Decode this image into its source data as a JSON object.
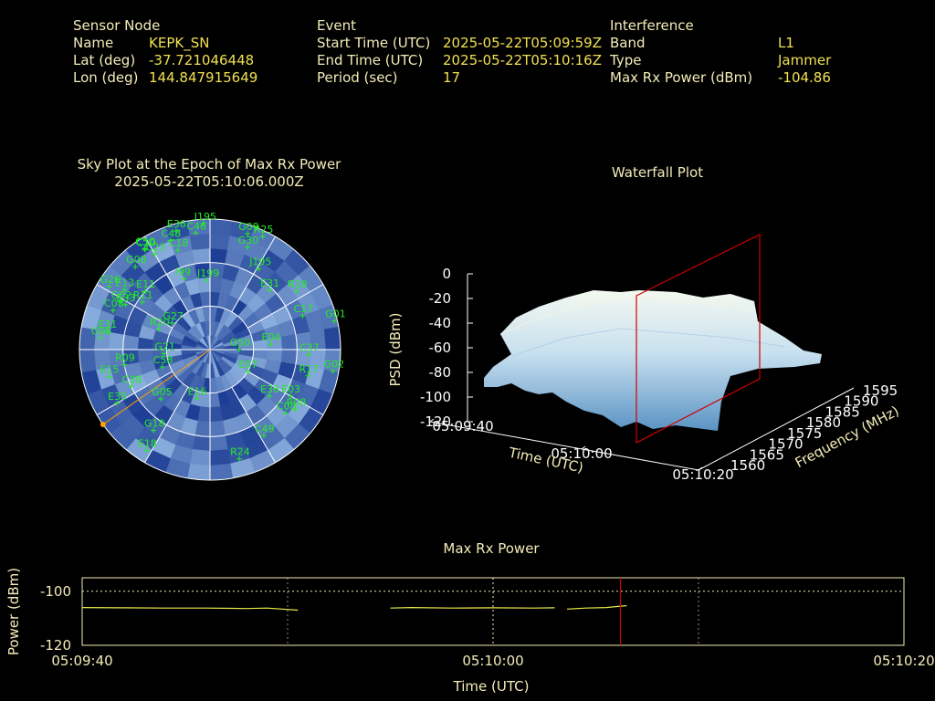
{
  "sensor": {
    "header": "Sensor Node",
    "name_label": "Name",
    "name": "KEPK_SN",
    "lat_label": "Lat (deg)",
    "lat": "-37.721046448",
    "lon_label": "Lon (deg)",
    "lon": "144.847915649"
  },
  "event": {
    "header": "Event",
    "start_label": "Start Time (UTC)",
    "start": "2025-05-22T05:09:59Z",
    "end_label": "End Time (UTC)",
    "end": "2025-05-22T05:10:16Z",
    "period_label": "Period (sec)",
    "period": "17"
  },
  "interference": {
    "header": "Interference",
    "band_label": "Band",
    "band": "L1",
    "type_label": "Type",
    "type": "Jammer",
    "power_label": "Max Rx Power (dBm)",
    "power": "-104.86"
  },
  "skyplot": {
    "title": "Sky Plot at the Epoch of Max Rx Power",
    "subtitle": "2025-05-22T05:10:06.000Z"
  },
  "waterfall": {
    "title": "Waterfall Plot",
    "zlabel": "PSD (dBm)",
    "xlabel": "Time (UTC)",
    "ylabel": "Frequency (MHz)",
    "zticks": [
      "0",
      "-20",
      "-40",
      "-60",
      "-80",
      "-100",
      "-120"
    ],
    "xticks": [
      "05:09:40",
      "05:10:00",
      "05:10:20"
    ],
    "yticks": [
      "1560",
      "1565",
      "1570",
      "1575",
      "1580",
      "1585",
      "1590",
      "1595"
    ]
  },
  "chart_data": [
    {
      "type": "scatter",
      "title": "Sky Plot at the Epoch of Max Rx Power",
      "subtitle": "2025-05-22T05:10:06.000Z",
      "satellites": [
        {
          "id": "E36",
          "az": -16,
          "el": 5
        },
        {
          "id": "I195",
          "az": -3,
          "el": 3
        },
        {
          "id": "G09",
          "az": 18,
          "el": 6
        },
        {
          "id": "R25",
          "az": 25,
          "el": 4
        },
        {
          "id": "C50",
          "az": -33,
          "el": 7
        },
        {
          "id": "C10",
          "az": -33,
          "el": 8
        },
        {
          "id": "C23",
          "az": -30,
          "el": 14
        },
        {
          "id": "C48",
          "az": -20,
          "el": 10
        },
        {
          "id": "C46",
          "az": -7,
          "el": 9
        },
        {
          "id": "G08",
          "az": -42,
          "el": 13
        },
        {
          "id": "C18",
          "az": -18,
          "el": 18
        },
        {
          "id": "G30",
          "az": 20,
          "el": 15
        },
        {
          "id": "G26",
          "az": -58,
          "el": 8
        },
        {
          "id": "E13",
          "az": -55,
          "el": 18
        },
        {
          "id": "I99",
          "az": -20,
          "el": 38
        },
        {
          "id": "J199",
          "az": -3,
          "el": 42
        },
        {
          "id": "J195",
          "az": 31,
          "el": 25
        },
        {
          "id": "E11",
          "az": -48,
          "el": 30
        },
        {
          "id": "R11",
          "az": -55,
          "el": 33
        },
        {
          "id": "E33",
          "az": -62,
          "el": 24
        },
        {
          "id": "G02",
          "az": -62,
          "el": 20
        },
        {
          "id": "C08",
          "az": -68,
          "el": 18
        },
        {
          "id": "E31",
          "az": 45,
          "el": 32
        },
        {
          "id": "R18",
          "az": 56,
          "el": 18
        },
        {
          "id": "G01",
          "az": 77,
          "el": 2
        },
        {
          "id": "E31",
          "az": -80,
          "el": 18
        },
        {
          "id": "G05",
          "az": -84,
          "el": 14
        },
        {
          "id": "G27",
          "az": -55,
          "el": 58
        },
        {
          "id": "R20",
          "az": -68,
          "el": 52
        },
        {
          "id": "C17",
          "az": 70,
          "el": 22
        },
        {
          "id": "G21",
          "az": -95,
          "el": 58
        },
        {
          "id": "G50",
          "az": 90,
          "el": 70
        },
        {
          "id": "E04",
          "az": 85,
          "el": 48
        },
        {
          "id": "C37",
          "az": 93,
          "el": 22
        },
        {
          "id": "G02",
          "az": 100,
          "el": 4
        },
        {
          "id": "R09",
          "az": -100,
          "el": 30
        },
        {
          "id": "C58",
          "az": -110,
          "el": 55
        },
        {
          "id": "E15",
          "az": -105,
          "el": 18
        },
        {
          "id": "C38",
          "az": -115,
          "el": 30
        },
        {
          "id": "R17",
          "az": 105,
          "el": 20
        },
        {
          "id": "E35",
          "az": -120,
          "el": 16
        },
        {
          "id": "E07",
          "az": 120,
          "el": 60
        },
        {
          "id": "E36",
          "az": 128,
          "el": 38
        },
        {
          "id": "E03",
          "az": 120,
          "el": 26
        },
        {
          "id": "R08",
          "az": 125,
          "el": 18
        },
        {
          "id": "C08",
          "az": 130,
          "el": 22
        },
        {
          "id": "G05",
          "az": -135,
          "el": 42
        },
        {
          "id": "G18",
          "az": -145,
          "el": 22
        },
        {
          "id": "E16",
          "az": -165,
          "el": 55
        },
        {
          "id": "E18",
          "az": -148,
          "el": 8
        },
        {
          "id": "R24",
          "az": 165,
          "el": 12
        },
        {
          "id": "C49",
          "az": 148,
          "el": 20
        }
      ],
      "interferer_azimuth_deg": -125,
      "interferer_elevation_deg": 0
    },
    {
      "type": "area",
      "title": "Waterfall Plot",
      "xlabel": "Time (UTC)",
      "ylabel": "Frequency (MHz)",
      "zlabel": "PSD (dBm)",
      "time_range": [
        "05:09:40",
        "05:10:20"
      ],
      "freq_range_mhz": [
        1560,
        1595
      ],
      "zlim": [
        -120,
        0
      ],
      "marker_time": "05:10:06",
      "psd_level_dbm": [
        -80,
        -50,
        -48,
        -45,
        -48,
        -52,
        -70
      ],
      "psd_freq_mhz": [
        1560,
        1565,
        1570,
        1575,
        1580,
        1585,
        1595
      ]
    },
    {
      "type": "line",
      "title": "Max Rx Power",
      "xlabel": "Time (UTC)",
      "ylabel": "Power (dBm)",
      "ylim": [
        -120,
        -95
      ],
      "yticks": [
        "-100",
        "-120"
      ],
      "xticks": [
        "05:09:40",
        "05:10:00",
        "05:10:20"
      ],
      "marker_time": "05:10:06",
      "series": [
        {
          "segments": [
            {
              "x": [
                0,
                2,
                4,
                6,
                8,
                9,
                10.5
              ],
              "y": [
                -106.0,
                -106.1,
                -106.2,
                -106.2,
                -106.4,
                -106.2,
                -107.0
              ]
            },
            {
              "x": [
                15,
                16,
                18,
                20,
                22,
                23
              ],
              "y": [
                -106.2,
                -106.0,
                -106.2,
                -106.1,
                -106.2,
                -106.1
              ]
            },
            {
              "x": [
                23.6,
                24.5,
                25.5,
                26.5
              ],
              "y": [
                -106.6,
                -106.2,
                -106.0,
                -105.3
              ]
            }
          ]
        }
      ]
    }
  ],
  "maxpower": {
    "title": "Max Rx Power",
    "ylabel": "Power (dBm)",
    "xlabel": "Time (UTC)",
    "yticks": [
      "-100",
      "-120"
    ],
    "xticks": [
      "05:09:40",
      "05:10:00",
      "05:10:20"
    ]
  },
  "colors": {
    "label": "#f3ecb8",
    "value": "#f0e050",
    "sat_label": "#22ee22",
    "marker": "#d00000",
    "interferer": "#ffa000",
    "sky_dark": "#1b3c93",
    "sky_light": "#8aaede",
    "series": "#e8e84a"
  }
}
